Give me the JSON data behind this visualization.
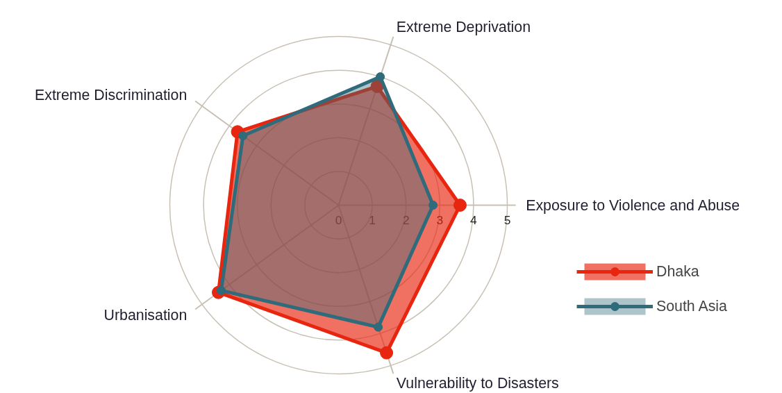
{
  "chart_data": {
    "type": "radar",
    "categories": [
      "Extreme Deprivation",
      "Exposure to Violence and Abuse",
      "Vulnerability to Disasters",
      "Urbanisation",
      "Extreme Discrimination"
    ],
    "series": [
      {
        "name": "Dhaka",
        "color": "#e8250e",
        "values": [
          3.7,
          3.6,
          4.6,
          4.4,
          3.7
        ]
      },
      {
        "name": "South Asia",
        "color": "#2f6b7a",
        "values": [
          4.0,
          2.8,
          3.8,
          4.3,
          3.5
        ]
      }
    ],
    "ylim": [
      0,
      5
    ],
    "yticks": [
      0,
      1,
      2,
      3,
      4,
      5
    ],
    "legend": "right",
    "marker": "circle",
    "grid": true
  }
}
